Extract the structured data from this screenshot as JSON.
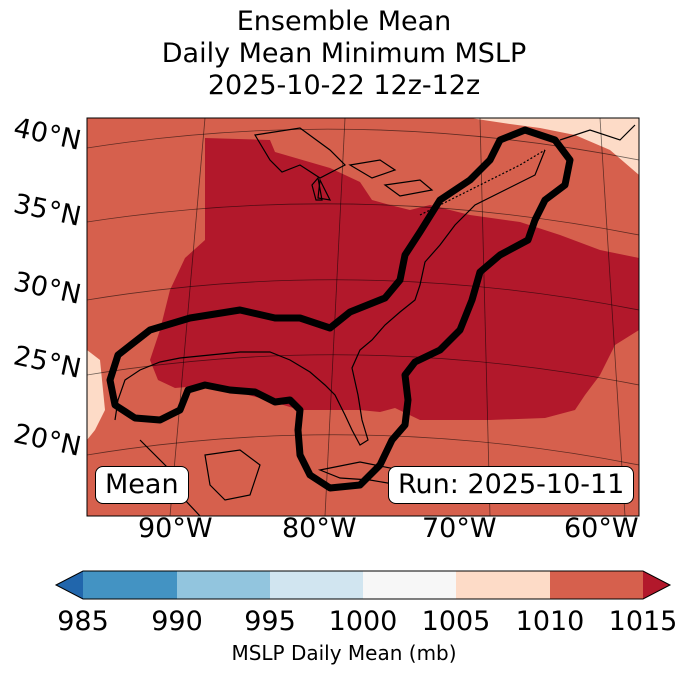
{
  "title": {
    "line1": "Ensemble Mean",
    "line2": "Daily Mean Minimum MSLP",
    "line3": "2025-10-22 12z-12z"
  },
  "map": {
    "lat_labels": [
      "40°N",
      "35°N",
      "30°N",
      "25°N",
      "20°N"
    ],
    "lon_labels": [
      "90°W",
      "80°W",
      "70°W",
      "60°W"
    ],
    "box_left": "Mean",
    "box_right": "Run: 2025-10-11",
    "colors": {
      "c985": "#2166ac",
      "c990": "#4393c3",
      "c995": "#92c5de",
      "c1000": "#d1e5f0",
      "c1005": "#f7f7f7",
      "c1010": "#fddbc7",
      "c1015": "#d6604d",
      "c_over": "#b2182b"
    }
  },
  "colorbar": {
    "ticks": [
      "985",
      "990",
      "995",
      "1000",
      "1005",
      "1010",
      "1015"
    ],
    "label": "MSLP Daily Mean (mb)"
  }
}
